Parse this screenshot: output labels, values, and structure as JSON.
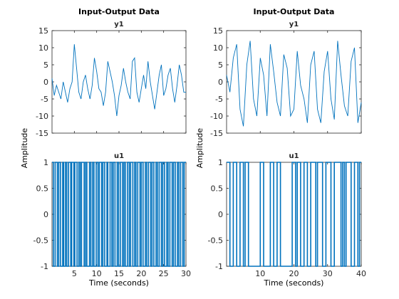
{
  "chart_data": [
    {
      "type": "line",
      "title": "Input-Output Data",
      "ylabel": "Amplitude",
      "xlabel": "Time (seconds)",
      "color": "#0072BD",
      "x_range": [
        0,
        30
      ],
      "x_ticks": [
        5,
        10,
        15,
        20,
        25,
        30
      ],
      "output": {
        "name": "y1",
        "ylim": [
          -15,
          15
        ],
        "yticks": [
          -15,
          -10,
          -5,
          0,
          5,
          10,
          15
        ],
        "x": [
          0,
          0.5,
          1,
          1.5,
          2,
          2.5,
          3,
          3.5,
          4,
          4.5,
          5,
          5.5,
          6,
          6.5,
          7,
          7.5,
          8,
          8.5,
          9,
          9.5,
          10,
          10.5,
          11,
          11.5,
          12,
          12.5,
          13,
          13.5,
          14,
          14.5,
          15,
          15.5,
          16,
          16.5,
          17,
          17.5,
          18,
          18.5,
          19,
          19.5,
          20,
          20.5,
          21,
          21.5,
          22,
          22.5,
          23,
          23.5,
          24,
          24.5,
          25,
          25.5,
          26,
          26.5,
          27,
          27.5,
          28,
          28.5,
          29,
          29.5,
          30
        ],
        "y": [
          1,
          -4,
          -1,
          -3,
          -5,
          0,
          -3,
          -6,
          -2,
          0,
          11,
          4,
          -3,
          -5,
          0,
          2,
          -2,
          -5,
          -1,
          7,
          3,
          -2,
          -3,
          -7,
          -3,
          6,
          3,
          0,
          -4,
          -10,
          -4,
          -1,
          4,
          0,
          -3,
          -5,
          6,
          7,
          -3,
          -6,
          -2,
          2,
          -2,
          6,
          0,
          -4,
          -8,
          -3,
          2,
          5,
          -4,
          -2,
          2,
          4,
          -2,
          -6,
          -1,
          5,
          2,
          -3,
          -3
        ]
      },
      "input": {
        "name": "u1",
        "ylim": [
          -1,
          1
        ],
        "yticks": [
          -1,
          -0.5,
          0,
          0.5,
          1
        ],
        "switch_times": [
          0.3,
          0.7,
          1.2,
          1.5,
          1.9,
          2.4,
          2.6,
          3.0,
          3.3,
          3.7,
          4.2,
          4.4,
          4.9,
          5.1,
          5.6,
          6.0,
          6.3,
          6.6,
          7.2,
          7.5,
          7.8,
          8.4,
          8.7,
          9.1,
          9.4,
          9.9,
          10.3,
          10.6,
          11.1,
          11.4,
          11.8,
          12.3,
          12.5,
          13.0,
          13.4,
          13.7,
          14.1,
          14.6,
          14.9,
          15.3,
          15.8,
          16.1,
          16.4,
          16.9,
          17.3,
          17.6,
          18.1,
          18.5,
          18.8,
          19.2,
          19.7,
          20.0,
          20.4,
          20.9,
          21.2,
          21.6,
          22.1,
          22.4,
          22.8,
          23.3,
          23.6,
          24.0,
          24.5,
          24.8,
          25.2,
          25.7,
          26.0,
          26.4,
          26.9,
          27.2,
          27.6,
          28.1,
          28.4,
          28.8,
          29.3,
          29.6
        ]
      }
    },
    {
      "type": "line",
      "title": "Input-Output Data",
      "ylabel": "Amplitude",
      "xlabel": "Time (seconds)",
      "color": "#0072BD",
      "x_range": [
        0,
        40
      ],
      "x_ticks": [
        10,
        20,
        30,
        40
      ],
      "output": {
        "name": "y1",
        "ylim": [
          -15,
          15
        ],
        "yticks": [
          -15,
          -10,
          -5,
          0,
          5,
          10,
          15
        ],
        "x": [
          0,
          1,
          2,
          3,
          4,
          5,
          6,
          7,
          8,
          9,
          10,
          11,
          12,
          13,
          14,
          15,
          16,
          17,
          18,
          19,
          20,
          21,
          22,
          23,
          24,
          25,
          26,
          27,
          28,
          29,
          30,
          31,
          32,
          33,
          34,
          35,
          36,
          37,
          38,
          39,
          40
        ],
        "y": [
          2,
          -3,
          7,
          11,
          -8,
          -13,
          5,
          12,
          -5,
          -10,
          7,
          2,
          -10,
          11,
          3,
          -6,
          -10,
          8,
          4,
          -10,
          -8,
          9,
          -1,
          -5,
          -12,
          5,
          9,
          -8,
          -12,
          3,
          9,
          -5,
          -11,
          12,
          2,
          -7,
          -10,
          6,
          10,
          -12,
          -6
        ]
      },
      "input": {
        "name": "u1",
        "ylim": [
          -1,
          1
        ],
        "yticks": [
          -1,
          -0.5,
          0,
          0.5,
          1
        ],
        "switch_times": [
          1.0,
          2.0,
          3.0,
          4.0,
          5.0,
          5.5,
          6.5,
          10.0,
          11.0,
          13.0,
          14.0,
          15.0,
          16.0,
          19.5,
          20.5,
          21.0,
          22.0,
          23.0,
          24.0,
          25.0,
          26.5,
          27.0,
          28.5,
          29.5,
          31.0,
          32.0,
          34.0,
          34.5,
          35.0,
          35.5,
          37.0,
          38.0,
          39.0,
          39.5
        ]
      }
    }
  ]
}
